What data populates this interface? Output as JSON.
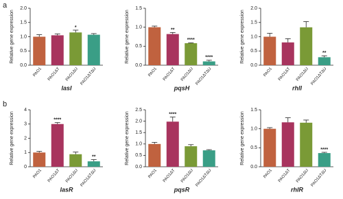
{
  "panel_labels": [
    "a",
    "b"
  ],
  "chart_data": [
    {
      "type": "bar",
      "x_label": "lasI",
      "y_label": "Relative gene expression",
      "categories": [
        "PAO1",
        "PAO1ΔT",
        "PAO1ΔU",
        "PAO1ΔTΔU"
      ],
      "values": [
        1.0,
        1.05,
        1.15,
        1.07
      ],
      "errors": [
        0.07,
        0.05,
        0.08,
        0.04
      ],
      "significance": [
        null,
        null,
        "*",
        null
      ],
      "colors": [
        "#c0623f",
        "#a8345e",
        "#7a9a36",
        "#3a9e86"
      ],
      "ylim": [
        0,
        2
      ],
      "yticks": [
        {
          "value": 0,
          "label": "0.0"
        },
        0.5,
        {
          "value": 1,
          "label": "1.0"
        },
        1.5,
        {
          "value": 2,
          "label": "2.0"
        }
      ]
    },
    {
      "type": "bar",
      "x_label": "pqsH",
      "y_label": "Relative gene expression",
      "categories": [
        "PAO1",
        "PAO1ΔT",
        "PAO1ΔU",
        "PAO1ΔTΔU"
      ],
      "values": [
        1.0,
        0.82,
        0.58,
        0.1
      ],
      "errors": [
        0.03,
        0.04,
        0.01,
        0.03
      ],
      "significance": [
        null,
        "**",
        "****",
        "****"
      ],
      "colors": [
        "#c0623f",
        "#a8345e",
        "#7a9a36",
        "#3a9e86"
      ],
      "ylim": [
        0,
        1.5
      ],
      "yticks": [
        {
          "value": 0,
          "label": "0.0"
        },
        0.5,
        {
          "value": 1,
          "label": "1.0"
        },
        1.5
      ]
    },
    {
      "type": "bar",
      "x_label": "rhlI",
      "y_label": "Relative gene expression",
      "categories": [
        "PAO1",
        "PAO1ΔT",
        "PAO1ΔU",
        "PAO1ΔTΔU"
      ],
      "values": [
        1.0,
        0.8,
        1.33,
        0.28
      ],
      "errors": [
        0.12,
        0.13,
        0.2,
        0.05
      ],
      "significance": [
        null,
        null,
        null,
        "**"
      ],
      "colors": [
        "#c0623f",
        "#a8345e",
        "#7a9a36",
        "#3a9e86"
      ],
      "ylim": [
        0,
        2
      ],
      "yticks": [
        {
          "value": 0,
          "label": "0.0"
        },
        0.5,
        {
          "value": 1,
          "label": "1.0"
        },
        1.5,
        {
          "value": 2,
          "label": "2.0"
        }
      ]
    },
    {
      "type": "bar",
      "x_label": "lasR",
      "y_label": "Relative gene expression",
      "categories": [
        "PAO1",
        "PAO1ΔT",
        "PAO1ΔU",
        "PAO1ΔTΔU"
      ],
      "values": [
        1.0,
        3.0,
        0.88,
        0.38
      ],
      "errors": [
        0.08,
        0.1,
        0.15,
        0.12
      ],
      "significance": [
        null,
        "****",
        null,
        "**"
      ],
      "colors": [
        "#c0623f",
        "#a8345e",
        "#7a9a36",
        "#3a9e86"
      ],
      "ylim": [
        0,
        4
      ],
      "yticks": [
        0,
        1,
        2,
        3,
        4
      ]
    },
    {
      "type": "bar",
      "x_label": "pqsR",
      "y_label": "Relative gene expression",
      "categories": [
        "PAO1",
        "PAO1ΔT",
        "PAO1ΔU",
        "PAO1ΔTΔU"
      ],
      "values": [
        1.0,
        1.98,
        0.9,
        0.72
      ],
      "errors": [
        0.07,
        0.2,
        0.07,
        0.03
      ],
      "significance": [
        null,
        "****",
        null,
        null
      ],
      "colors": [
        "#c0623f",
        "#a8345e",
        "#7a9a36",
        "#3a9e86"
      ],
      "ylim": [
        0,
        2.5
      ],
      "yticks": [
        {
          "value": 0,
          "label": "0.0"
        },
        0.5,
        {
          "value": 1,
          "label": "1.0"
        },
        1.5,
        {
          "value": 2,
          "label": "2.0"
        },
        2.5
      ]
    },
    {
      "type": "bar",
      "x_label": "rhlR",
      "y_label": "Relative gene expression",
      "categories": [
        "PAO1",
        "PAO1ΔT",
        "PAO1ΔU",
        "PAO1ΔTΔU"
      ],
      "values": [
        1.0,
        1.17,
        1.16,
        0.36
      ],
      "errors": [
        0.03,
        0.12,
        0.07,
        0.02
      ],
      "significance": [
        null,
        null,
        null,
        "****"
      ],
      "colors": [
        "#c0623f",
        "#a8345e",
        "#7a9a36",
        "#3a9e86"
      ],
      "ylim": [
        0,
        1.5
      ],
      "yticks": [
        {
          "value": 0,
          "label": "0.0"
        },
        0.5,
        {
          "value": 1,
          "label": "1.0"
        },
        1.5
      ]
    }
  ]
}
